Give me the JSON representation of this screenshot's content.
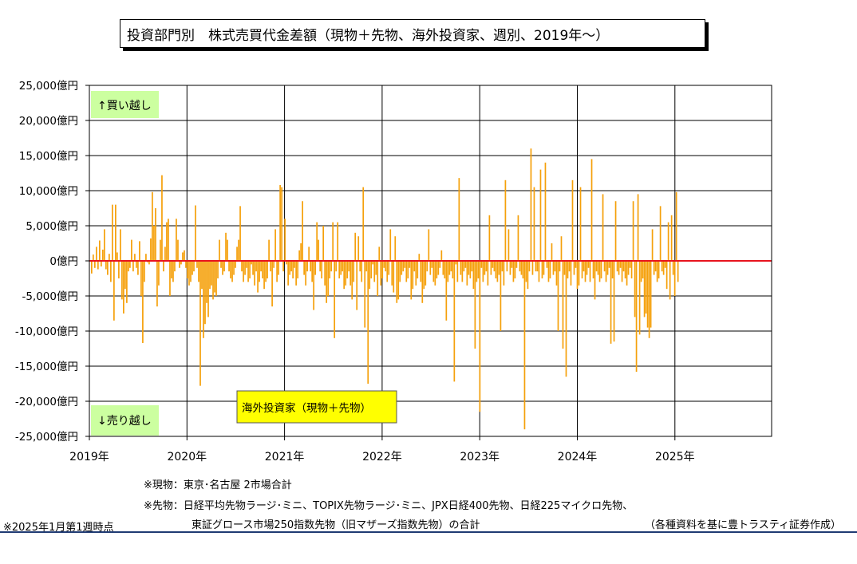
{
  "title": "投資部門別　株式売買代金差額（現物＋先物、海外投資家、週別、2019年～）",
  "notes": {
    "genbutsu": "※現物：東京･名古屋 2市場合計",
    "sakimono_1": "※先物：日経平均先物ラージ･ミニ、TOPIX先物ラージ･ミニ、JPX日経400先物、日経225マイクロ先物、",
    "sakimono_2": "東証グロース市場250指数先物（旧マザーズ指数先物）の合計",
    "as_of": "※2025年1月第1週時点",
    "source": "（各種資料を基に豊トラスティ証券作成）"
  },
  "colors": {
    "bar": "#f5a00a",
    "zero_line": "#e8141e",
    "label_green": "#ccffa0",
    "legend_yellow": "#ffff00"
  },
  "chart_data": {
    "type": "bar",
    "title": "投資部門別　株式売買代金差額（現物＋先物、海外投資家、週別、2019年～）",
    "unit": "億円",
    "ylim": [
      -25000,
      25000
    ],
    "y_ticks": [
      25000,
      20000,
      15000,
      10000,
      5000,
      0,
      -5000,
      -10000,
      -15000,
      -20000,
      -25000
    ],
    "y_tick_labels": [
      "25,000億円",
      "20,000億円",
      "15,000億円",
      "10,000億円",
      "5,000億円",
      "0億円",
      "-5,000億円",
      "-10,000億円",
      "-15,000億円",
      "-20,000億円",
      "-25,000億円"
    ],
    "x_labels": [
      "2019年",
      "2020年",
      "2021年",
      "2022年",
      "2023年",
      "2024年",
      "2025年"
    ],
    "x_range": [
      "2019-01",
      "2026-01"
    ],
    "grid": true,
    "annotations": {
      "buy": "↑買い越し",
      "sell": "↓売り越し"
    },
    "legend": {
      "label": "海外投資家（現物＋先物）",
      "position": "bottom-center"
    },
    "series": [
      {
        "name": "海外投資家（現物＋先物）",
        "weekly_values_2019_01_to_2025_01": [
          -1800,
          900,
          -1000,
          2000,
          -1200,
          2900,
          -800,
          1600,
          4500,
          -1200,
          -2000,
          1000,
          -3000,
          8000,
          -8500,
          8000,
          1200,
          -2500,
          4500,
          -5500,
          -7500,
          -4000,
          -6000,
          -1500,
          -1000,
          3000,
          -1500,
          1000,
          -1000,
          -2000,
          2800,
          -5000,
          -11700,
          -3000,
          1000,
          -200,
          -500,
          3200,
          9800,
          5000,
          7500,
          -6500,
          -3500,
          3000,
          12200,
          -1500,
          2000,
          5500,
          6000,
          -5000,
          -2500,
          -3000,
          -1500,
          6000,
          3000,
          -1000,
          -500,
          1200,
          1500,
          -1000,
          -2500,
          -3500,
          -3000,
          -2000,
          -1500,
          7900,
          -1000,
          -3000,
          -17800,
          -4000,
          -11000,
          -9000,
          -6000,
          -8000,
          -4000,
          -3500,
          -5500,
          -4500,
          -5000,
          -2500,
          3000,
          -1000,
          -2000,
          -1500,
          4000,
          3000,
          -1500,
          -2500,
          -3000,
          -2000,
          -1000,
          2000,
          3000,
          7800,
          -1500,
          -3000,
          -2000,
          -1000,
          -3000,
          -2500,
          -500,
          -2000,
          -3500,
          -1500,
          -4500,
          -3000,
          -1500,
          -2500,
          -4000,
          -3000,
          -2500,
          3000,
          -1500,
          -6500,
          -1000,
          4500,
          -3000,
          -2000,
          10800,
          10500,
          -1500,
          6000,
          -500,
          -3500,
          -2000,
          -1500,
          -2500,
          -1000,
          -3500,
          -2500,
          1500,
          2500,
          8500,
          -2000,
          -3500,
          -1500,
          2000,
          -1500,
          -3000,
          -7000,
          -2000,
          5500,
          3000,
          -1500,
          -2500,
          5000,
          -3500,
          -6000,
          -5000,
          -2500,
          -1500,
          5500,
          -11000,
          -1500,
          5500,
          -2500,
          -2000,
          -1500,
          -4000,
          -3500,
          -2500,
          -1500,
          -3500,
          -5500,
          -3000,
          4000,
          -7000,
          3500,
          -1500,
          -3000,
          10500,
          -9500,
          -1500,
          -17500,
          -4000,
          -2500,
          -500,
          -3000,
          -2000,
          -5000,
          2000,
          -3500,
          -2500,
          -1000,
          -1500,
          -3000,
          -2000,
          4500,
          -3500,
          -4500,
          3500,
          -6000,
          -5500,
          -3000,
          -2000,
          -1500,
          -1000,
          -3000,
          -2500,
          -1000,
          -5500,
          -4000,
          -1500,
          -3500,
          -2500,
          1000,
          -3000,
          -6000,
          -4000,
          -3500,
          -1500,
          4500,
          -2000,
          -1000,
          -3000,
          -3500,
          -2500,
          -2000,
          -1000,
          1500,
          -2000,
          -2500,
          -8500,
          -3000,
          -2000,
          -1500,
          -2500,
          -17200,
          -500,
          -3000,
          11800,
          -2000,
          -3000,
          -1500,
          -1000,
          -3500,
          -2000,
          -2500,
          -1500,
          -4000,
          -12500,
          -3000,
          -2500,
          -21500,
          -1000,
          -3000,
          -2000,
          -1500,
          -3500,
          6500,
          -2000,
          -1000,
          -1500,
          -2500,
          -3000,
          -2000,
          -10000,
          -1500,
          -3500,
          11500,
          -1500,
          4500,
          -2000,
          -1000,
          -3000,
          -2500,
          -1000,
          6500,
          -1500,
          -2000,
          -2500,
          -24000,
          -3000,
          -4000,
          -1500,
          16000,
          -2000,
          10500,
          -1500,
          -1500,
          -3000,
          13000,
          -2500,
          -2000,
          14000,
          -1000,
          -3000,
          -2500,
          2500,
          -2000,
          -1500,
          -3500,
          -10000,
          -1500,
          3500,
          -12500,
          -2000,
          -16500,
          -2500,
          -1500,
          -3500,
          11500,
          -2000,
          -1000,
          -4000,
          -3500,
          10500,
          -2500,
          -1500,
          -3000,
          -2000,
          -1000,
          -3000,
          14500,
          -2500,
          -5500,
          -1500,
          -2000,
          -3000,
          -2500,
          9500,
          -1500,
          -3000,
          -2000,
          -1000,
          -11800,
          -2500,
          -11500,
          8500,
          -1500,
          -2000,
          -1000,
          -3000,
          -1500,
          -2500,
          -3500,
          -2000,
          -1000,
          -2500,
          8500,
          -8000,
          -15800,
          9500,
          -10500,
          -3000,
          -2500,
          -8000,
          -7500,
          -9500,
          -11000,
          -9500,
          4500,
          -2000,
          -1500,
          -3000,
          -2500,
          7800,
          -1500,
          -2000,
          -1000,
          -4000,
          5500,
          -5500,
          6500,
          -2000,
          -5000,
          9800,
          -3000
        ]
      }
    ]
  }
}
